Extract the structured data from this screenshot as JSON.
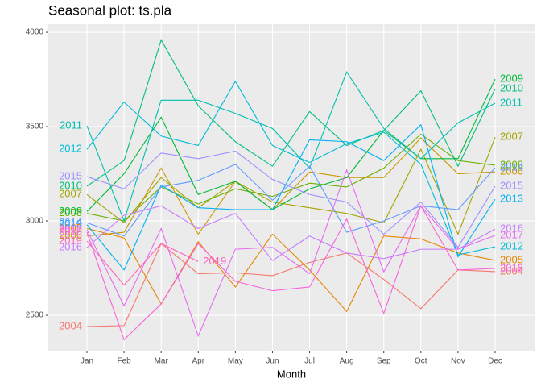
{
  "chart_data": {
    "type": "line",
    "title": "Seasonal plot: ts.pla",
    "x_label": "Month",
    "categories": [
      "Jan",
      "Feb",
      "Mar",
      "Apr",
      "May",
      "Jun",
      "Jul",
      "Aug",
      "Sep",
      "Oct",
      "Nov",
      "Dec"
    ],
    "ylim": [
      2312,
      4043
    ],
    "yticks": [
      2500,
      3000,
      3500,
      4000
    ],
    "grid": true,
    "series": [
      {
        "name": "2004",
        "color": "#F8766D",
        "values": [
          2440,
          2445,
          2880,
          2720,
          2725,
          2710,
          2780,
          2830,
          2690,
          2535,
          2740,
          2731
        ]
      },
      {
        "name": "2005",
        "color": "#E58700",
        "values": [
          2960,
          2910,
          2560,
          2890,
          2650,
          2930,
          2740,
          2520,
          2920,
          2905,
          2830,
          2791
        ]
      },
      {
        "name": "2006",
        "color": "#C99800",
        "values": [
          2920,
          2940,
          3280,
          2930,
          3210,
          3060,
          3260,
          3230,
          3230,
          3440,
          3250,
          3260
        ]
      },
      {
        "name": "2007",
        "color": "#A3A500",
        "values": [
          3140,
          2990,
          3230,
          3070,
          3210,
          3100,
          3070,
          3040,
          2990,
          3380,
          2930,
          3444
        ]
      },
      {
        "name": "2008",
        "color": "#6BB100",
        "values": [
          3040,
          3000,
          3180,
          3090,
          3170,
          3130,
          3200,
          3180,
          3280,
          3460,
          3320,
          3295
        ]
      },
      {
        "name": "2009",
        "color": "#00BA38",
        "values": [
          3050,
          3250,
          3550,
          3140,
          3210,
          3060,
          3170,
          3230,
          3480,
          3330,
          3330,
          3752
        ]
      },
      {
        "name": "2010",
        "color": "#00BF7D",
        "values": [
          3184,
          3320,
          3960,
          3610,
          3420,
          3290,
          3580,
          3400,
          3480,
          3690,
          3290,
          3700
        ]
      },
      {
        "name": "2011",
        "color": "#00C0AF",
        "values": [
          3504,
          3000,
          3640,
          3640,
          3570,
          3490,
          3280,
          3790,
          3490,
          3330,
          3520,
          3624
        ]
      },
      {
        "name": "2012",
        "color": "#00BCD8",
        "values": [
          3380,
          3630,
          3450,
          3400,
          3740,
          3400,
          3310,
          3410,
          3470,
          3300,
          2820,
          2863
        ]
      },
      {
        "name": "2013",
        "color": "#00B0F6",
        "values": [
          2980,
          2740,
          3190,
          3070,
          3060,
          3060,
          3430,
          3420,
          3320,
          3510,
          2810,
          3115
        ]
      },
      {
        "name": "2014",
        "color": "#619CFF",
        "values": [
          2990,
          2920,
          3180,
          3215,
          3300,
          3110,
          3290,
          2940,
          3000,
          3080,
          3060,
          3282
        ]
      },
      {
        "name": "2015",
        "color": "#9A8FFF",
        "values": [
          3235,
          3170,
          3360,
          3330,
          3370,
          3220,
          3140,
          3100,
          2930,
          3100,
          2860,
          3184
        ]
      },
      {
        "name": "2016",
        "color": "#C77CFF",
        "values": [
          2859,
          3030,
          3080,
          2960,
          3040,
          2790,
          2920,
          2830,
          2800,
          2850,
          2850,
          2957
        ]
      },
      {
        "name": "2017",
        "color": "#E76BF3",
        "values": [
          2953,
          2550,
          2960,
          2390,
          2850,
          2860,
          2720,
          3270,
          2730,
          3080,
          2850,
          2923
        ]
      },
      {
        "name": "2018",
        "color": "#FA62DB",
        "values": [
          2940,
          2370,
          2560,
          2880,
          2680,
          2630,
          2650,
          3010,
          2510,
          3080,
          2740,
          2748
        ]
      },
      {
        "name": "2019",
        "color": "#FF62BC",
        "values": [
          2893,
          2660,
          2880,
          2785,
          null,
          null,
          null,
          null,
          null,
          null,
          null,
          null
        ]
      }
    ]
  }
}
